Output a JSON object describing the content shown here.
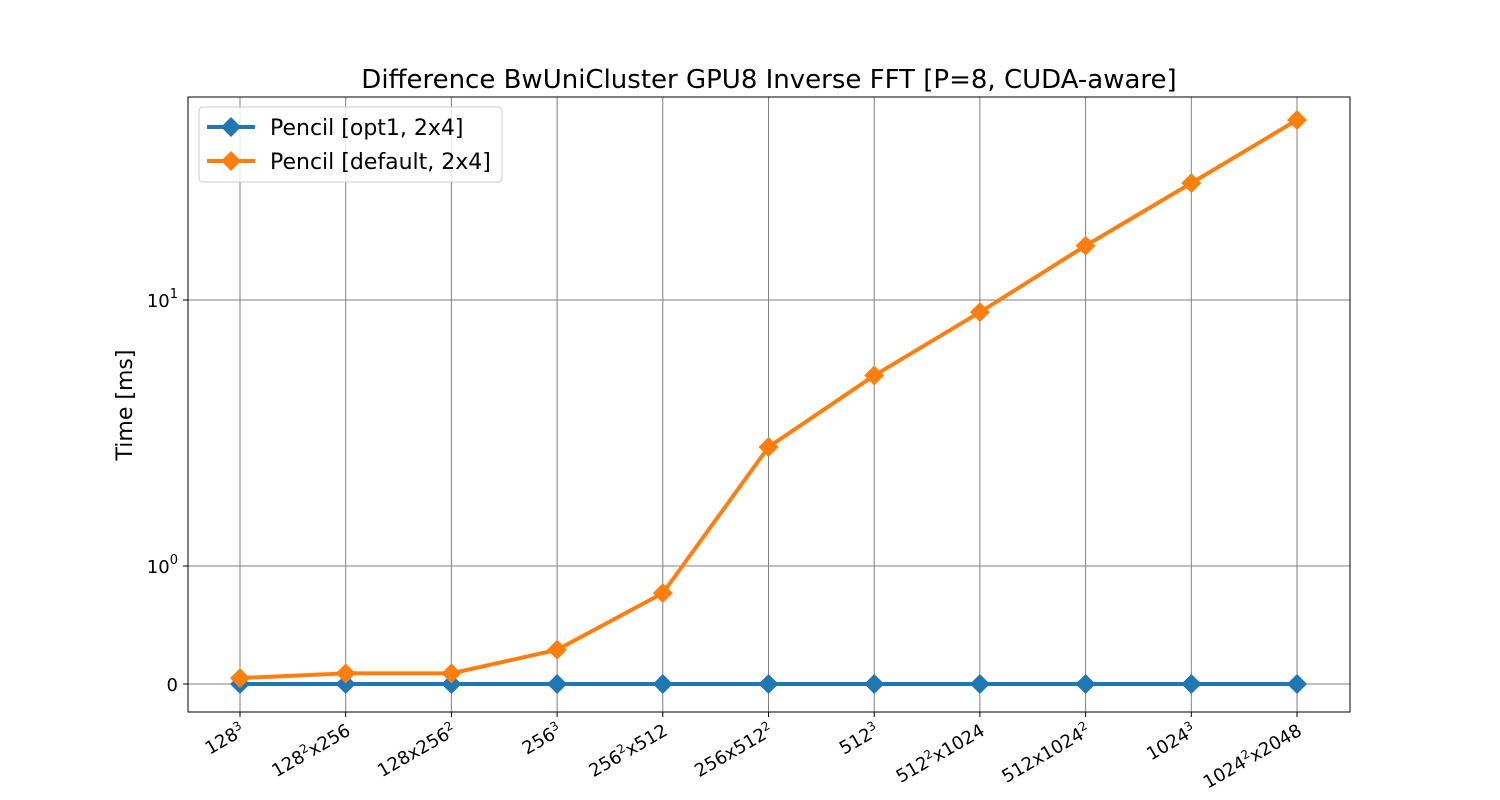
{
  "chart_data": {
    "type": "line",
    "title": "Difference BwUniCluster GPU8 Inverse FFT [P=8, CUDA-aware]",
    "xlabel": "",
    "ylabel": "Time [ms]",
    "yscale": "symlog",
    "ytick_labels": [
      {
        "value": 0,
        "base": "0",
        "exp": ""
      },
      {
        "value": 1,
        "base": "10",
        "exp": "0"
      },
      {
        "value": 10,
        "base": "10",
        "exp": "1"
      }
    ],
    "categories": [
      {
        "base": "128",
        "exp": "3",
        "tail": ""
      },
      {
        "base": "128",
        "exp": "2",
        "tail": "x256"
      },
      {
        "base": "128x256",
        "exp": "2",
        "tail": ""
      },
      {
        "base": "256",
        "exp": "3",
        "tail": ""
      },
      {
        "base": "256",
        "exp": "2",
        "tail": "x512"
      },
      {
        "base": "256x512",
        "exp": "2",
        "tail": ""
      },
      {
        "base": "512",
        "exp": "3",
        "tail": ""
      },
      {
        "base": "512",
        "exp": "2",
        "tail": "x1024"
      },
      {
        "base": "512x1024",
        "exp": "2",
        "tail": ""
      },
      {
        "base": "1024",
        "exp": "3",
        "tail": ""
      },
      {
        "base": "1024",
        "exp": "2",
        "tail": "x2048"
      }
    ],
    "series": [
      {
        "name": "Pencil [opt1, 2x4]",
        "color": "#1f77b4",
        "marker": "diamond",
        "values": [
          0,
          0,
          0,
          0,
          0,
          0,
          0,
          0,
          0,
          0,
          0
        ]
      },
      {
        "name": "Pencil [default, 2x4]",
        "color": "#ff7f0e",
        "marker": "diamond",
        "values": [
          0.05,
          0.09,
          0.09,
          0.29,
          0.77,
          2.8,
          5.2,
          9.0,
          16.0,
          27.5,
          47.5
        ]
      }
    ],
    "grid": true,
    "legend_position": "top-left"
  }
}
